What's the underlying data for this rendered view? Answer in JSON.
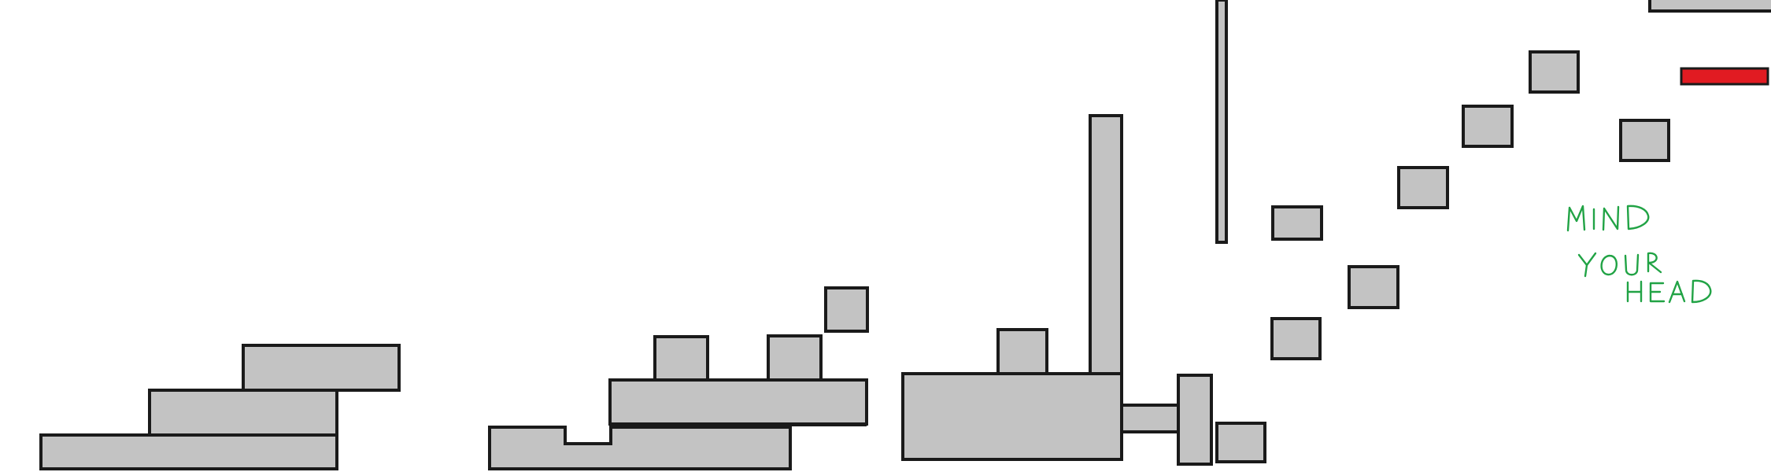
{
  "level": {
    "background": "#ffffff",
    "block_fill": "#c3c3c3",
    "block_outline": "#1a1a1a",
    "hazard_color": "#e11b22",
    "hazard_kind": "red-bar-hazard",
    "annotation": {
      "lines": [
        "MIND",
        "YOUR",
        "HEAD"
      ],
      "color": "#21a345",
      "style": "handwritten"
    }
  }
}
